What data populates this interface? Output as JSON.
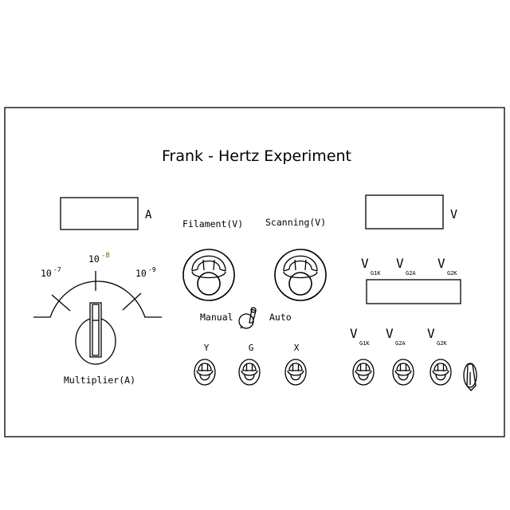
{
  "title": "Frank - Hertz Experiment",
  "current_unit": "A",
  "voltage_unit": "V",
  "labels": {
    "filament": "Filament(V)",
    "scanning": "Scanning(V)",
    "manual": "Manual",
    "auto": "Auto",
    "multiplier": "Multiplier(A)",
    "y": "Y",
    "g": "G",
    "x": "X"
  },
  "multiplier": {
    "base": "10",
    "exp_7": "-7",
    "exp_8": "-8",
    "exp_9": "-9"
  },
  "voltage_selector": {
    "v": "V",
    "g1k": "G1K",
    "g2a": "G2A",
    "g2k": "G2K"
  },
  "colors": {
    "ink": "#000000",
    "exp_highlight": "#6b6b1e"
  }
}
